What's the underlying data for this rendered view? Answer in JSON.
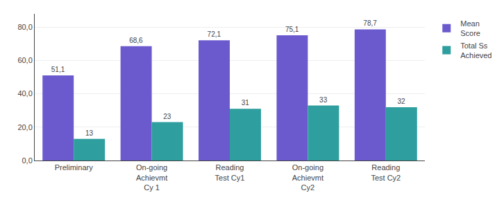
{
  "chart_data": {
    "type": "bar",
    "categories": [
      "Preliminary",
      "On-going\nAchievmt\nCy 1",
      "Reading\nTest Cy1",
      "On-going\nAchievmt\nCy2",
      "Reading\nTest Cy2"
    ],
    "series": [
      {
        "name": "Mean\nScore",
        "color": "#6A5ACD",
        "values": [
          51.1,
          68.6,
          72.1,
          75.1,
          78.7
        ],
        "value_labels": [
          "51,1",
          "68,6",
          "72,1",
          "75,1",
          "78,7"
        ]
      },
      {
        "name": "Total Ss\nAchieved",
        "color": "#2E9E9E",
        "values": [
          13,
          23,
          31,
          33,
          32
        ]
      }
    ],
    "ylim": [
      0,
      88
    ],
    "yticks": [
      {
        "value": 0,
        "label": "0,0"
      },
      {
        "value": 20,
        "label": "20,0"
      },
      {
        "value": 40,
        "label": "40,0"
      },
      {
        "value": 60,
        "label": "60,0"
      },
      {
        "value": 80,
        "label": "80,0"
      }
    ],
    "grid": true,
    "data_labels": true,
    "legend": "right"
  }
}
